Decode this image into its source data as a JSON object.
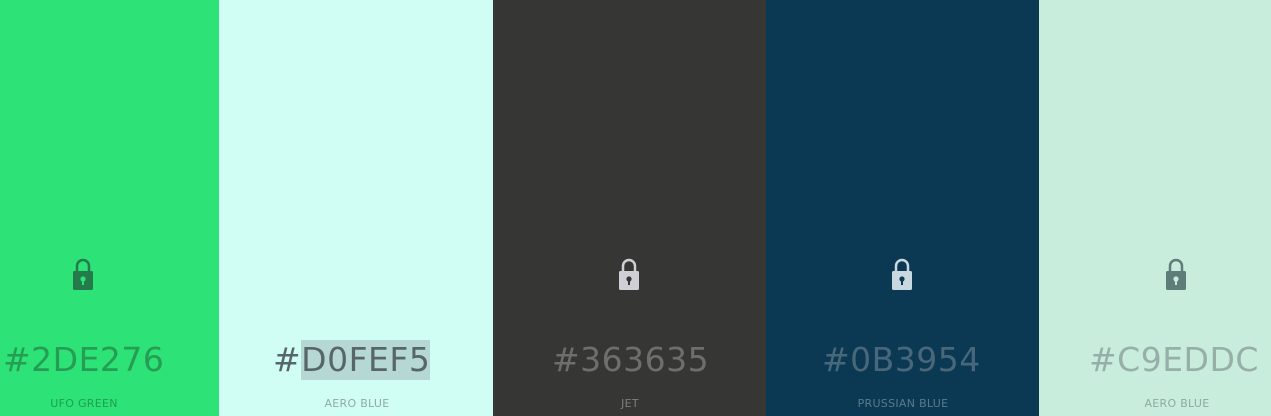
{
  "palette": {
    "swatches": [
      {
        "hex": "#2DE276",
        "hex_prefix": "#",
        "hex_selected": "",
        "hex_rest": "2DE276",
        "name": "UFO GREEN",
        "background": "#2DE276",
        "locked": true,
        "lock_color": "#257A4C",
        "lock_keyhole_color": "#2DE276"
      },
      {
        "hex": "#D0FEF5",
        "hex_prefix": "#",
        "hex_selected": "D0FEF5",
        "hex_rest": "",
        "name": "AERO BLUE",
        "background": "#D0FEF5",
        "locked": false,
        "lock_color": "",
        "lock_keyhole_color": ""
      },
      {
        "hex": "#363635",
        "hex_prefix": "#",
        "hex_selected": "",
        "hex_rest": "363635",
        "name": "JET",
        "background": "#363635",
        "locked": true,
        "lock_color": "#CFCFD4",
        "lock_keyhole_color": "#363635"
      },
      {
        "hex": "#0B3954",
        "hex_prefix": "#",
        "hex_selected": "",
        "hex_rest": "0B3954",
        "name": "PRUSSIAN BLUE",
        "background": "#0B3954",
        "locked": true,
        "lock_color": "#C9D7E1",
        "lock_keyhole_color": "#0B3954"
      },
      {
        "hex": "#C9EDDC",
        "hex_prefix": "#",
        "hex_selected": "",
        "hex_rest": "C9EDDC",
        "name": "AERO BLUE",
        "background": "#C9EDDC",
        "locked": true,
        "lock_color": "#5F7D78",
        "lock_keyhole_color": "#C9EDDC"
      }
    ],
    "lock_icon": "padlock-icon"
  }
}
